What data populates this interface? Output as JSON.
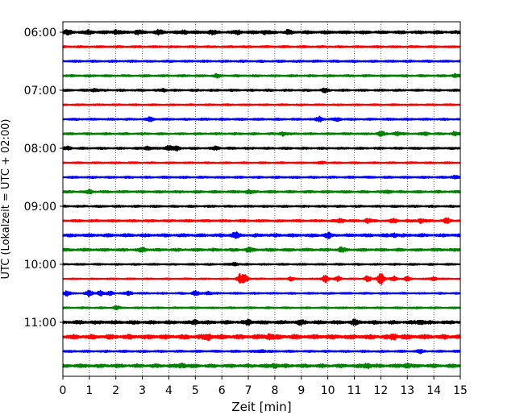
{
  "chart_data": {
    "type": "line",
    "xlabel": "Zeit  [min]",
    "ylabel": "UTC (Lokalzeit = UTC + 02:00)",
    "xlim": [
      0,
      15
    ],
    "x_ticks": [
      0,
      1,
      2,
      3,
      4,
      5,
      6,
      7,
      8,
      9,
      10,
      11,
      12,
      13,
      14,
      15
    ],
    "x_grid": true,
    "y_tick_labels": [
      "06:00",
      "07:00",
      "08:00",
      "09:00",
      "10:00",
      "11:00"
    ],
    "trace_colors": [
      "#000000",
      "#ff0000",
      "#0000ff",
      "#008000"
    ],
    "traces": [
      {
        "start": "06:00",
        "color": "#000000",
        "amplitude": 0.9,
        "bursts": [
          [
            0.2,
            0.8
          ],
          [
            1.0,
            0.9
          ],
          [
            2.0,
            0.9
          ],
          [
            2.8,
            0.8
          ],
          [
            3.6,
            0.8
          ],
          [
            4.6,
            0.8
          ],
          [
            5.6,
            0.8
          ],
          [
            6.6,
            0.8
          ],
          [
            7.6,
            0.8
          ],
          [
            8.5,
            0.7
          ]
        ]
      },
      {
        "start": "06:15",
        "color": "#ff0000",
        "amplitude": 0.6,
        "bursts": []
      },
      {
        "start": "06:30",
        "color": "#0000ff",
        "amplitude": 0.6,
        "bursts": []
      },
      {
        "start": "06:45",
        "color": "#008000",
        "amplitude": 0.6,
        "bursts": [
          [
            5.8,
            0.8
          ],
          [
            14.8,
            0.7
          ]
        ]
      },
      {
        "start": "07:00",
        "color": "#000000",
        "amplitude": 0.6,
        "bursts": [
          [
            1.2,
            0.8
          ],
          [
            3.8,
            0.7
          ],
          [
            9.9,
            0.9
          ]
        ]
      },
      {
        "start": "07:15",
        "color": "#ff0000",
        "amplitude": 0.5,
        "bursts": []
      },
      {
        "start": "07:30",
        "color": "#0000ff",
        "amplitude": 0.6,
        "bursts": [
          [
            3.3,
            0.9
          ],
          [
            9.7,
            1.3
          ],
          [
            10.4,
            0.7
          ]
        ]
      },
      {
        "start": "07:45",
        "color": "#008000",
        "amplitude": 0.6,
        "bursts": [
          [
            8.3,
            1.1
          ],
          [
            12.0,
            1.2
          ],
          [
            12.6,
            0.8
          ],
          [
            13.7,
            0.8
          ],
          [
            14.8,
            0.9
          ]
        ]
      },
      {
        "start": "08:00",
        "color": "#000000",
        "amplitude": 0.6,
        "bursts": [
          [
            0.2,
            0.8
          ],
          [
            3.2,
            1.0
          ],
          [
            4.0,
            1.4
          ],
          [
            4.3,
            0.9
          ],
          [
            5.8,
            0.8
          ]
        ]
      },
      {
        "start": "08:15",
        "color": "#ff0000",
        "amplitude": 0.5,
        "bursts": [
          [
            9.8,
            0.7
          ]
        ]
      },
      {
        "start": "08:30",
        "color": "#0000ff",
        "amplitude": 0.6,
        "bursts": [
          [
            14.8,
            0.9
          ]
        ]
      },
      {
        "start": "08:45",
        "color": "#008000",
        "amplitude": 0.7,
        "bursts": [
          [
            1.0,
            0.8
          ],
          [
            7.0,
            0.7
          ],
          [
            12.3,
            0.7
          ]
        ]
      },
      {
        "start": "09:00",
        "color": "#000000",
        "amplitude": 0.6,
        "bursts": []
      },
      {
        "start": "09:15",
        "color": "#ff0000",
        "amplitude": 0.7,
        "bursts": [
          [
            10.5,
            0.9
          ],
          [
            11.5,
            1.0
          ],
          [
            12.5,
            1.0
          ],
          [
            13.5,
            1.1
          ],
          [
            14.5,
            1.0
          ]
        ]
      },
      {
        "start": "09:30",
        "color": "#0000ff",
        "amplitude": 0.9,
        "bursts": [
          [
            6.5,
            1.3
          ],
          [
            10.0,
            1.2
          ],
          [
            12.5,
            0.9
          ]
        ]
      },
      {
        "start": "09:45",
        "color": "#008000",
        "amplitude": 0.8,
        "bursts": [
          [
            3.0,
            0.8
          ],
          [
            7.0,
            0.8
          ],
          [
            10.5,
            1.0
          ]
        ]
      },
      {
        "start": "10:00",
        "color": "#000000",
        "amplitude": 0.5,
        "bursts": [
          [
            6.5,
            0.8
          ]
        ]
      },
      {
        "start": "10:15",
        "color": "#ff0000",
        "amplitude": 0.4,
        "bursts": [
          [
            6.7,
            2.5
          ],
          [
            6.9,
            1.8
          ],
          [
            8.6,
            1.0
          ],
          [
            9.9,
            2.0
          ],
          [
            10.4,
            1.2
          ],
          [
            11.5,
            1.5
          ],
          [
            12.0,
            3.5
          ],
          [
            12.5,
            1.4
          ],
          [
            13.0,
            1.2
          ],
          [
            14.0,
            1.0
          ]
        ]
      },
      {
        "start": "10:30",
        "color": "#0000ff",
        "amplitude": 0.5,
        "bursts": [
          [
            0.15,
            1.2
          ],
          [
            1.0,
            1.5
          ],
          [
            1.4,
            1.3
          ],
          [
            1.8,
            1.0
          ],
          [
            2.5,
            0.9
          ],
          [
            5.0,
            1.2
          ],
          [
            5.5,
            0.9
          ]
        ]
      },
      {
        "start": "10:45",
        "color": "#008000",
        "amplitude": 0.5,
        "bursts": [
          [
            2.0,
            0.8
          ]
        ]
      },
      {
        "start": "11:00",
        "color": "#000000",
        "amplitude": 1.0,
        "bursts": [
          [
            5.0,
            1.0
          ],
          [
            7.0,
            1.0
          ],
          [
            9.0,
            1.0
          ],
          [
            11.0,
            1.0
          ],
          [
            13.5,
            1.0
          ]
        ]
      },
      {
        "start": "11:15",
        "color": "#ff0000",
        "amplitude": 1.3,
        "bursts": [
          [
            5.5,
            1.3
          ],
          [
            7.8,
            1.2
          ],
          [
            12.5,
            1.2
          ]
        ]
      },
      {
        "start": "11:30",
        "color": "#0000ff",
        "amplitude": 0.6,
        "bursts": [
          [
            7.5,
            0.7
          ],
          [
            13.5,
            0.7
          ]
        ]
      },
      {
        "start": "11:45",
        "color": "#008000",
        "amplitude": 1.0,
        "bursts": [
          [
            4.5,
            1.0
          ],
          [
            8.0,
            1.0
          ],
          [
            11.5,
            1.2
          ],
          [
            13.0,
            1.1
          ]
        ]
      }
    ]
  }
}
